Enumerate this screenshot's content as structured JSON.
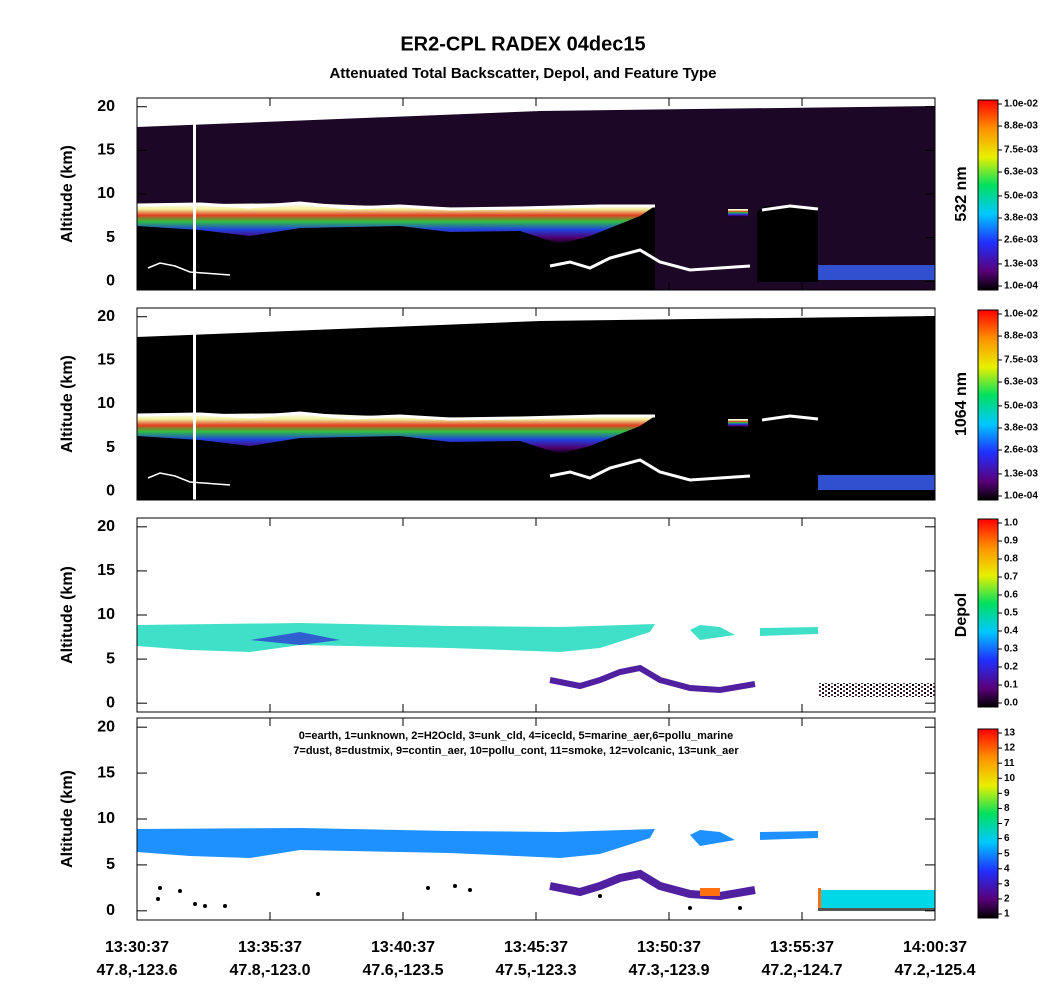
{
  "title": "ER2-CPL RADEX 04dec15",
  "subtitle": "Attenuated Total Backscatter, Depol, and Feature Type",
  "x_labels": [
    {
      "time": "13:30:37",
      "position": "47.8,-123.6"
    },
    {
      "time": "13:35:37",
      "position": "47.8,-123.0"
    },
    {
      "time": "13:40:37",
      "position": "47.6,-123.5"
    },
    {
      "time": "13:45:37",
      "position": "47.5,-123.3"
    },
    {
      "time": "13:50:37",
      "position": "47.3,-123.9"
    },
    {
      "time": "13:55:37",
      "position": "47.2,-124.7"
    },
    {
      "time": "14:00:37",
      "position": "47.2,-125.4"
    }
  ],
  "panels": [
    {
      "ylabel": "Altitude (km)",
      "ylim": [
        -1,
        21
      ],
      "yticks": [
        0,
        5,
        10,
        15,
        20
      ],
      "colorbar_label": "532 nm",
      "colorbar_lim": [
        0.0001,
        0.01
      ],
      "colorbar_ticks": [
        {
          "value": 0.01,
          "label": "1.0e-02"
        },
        {
          "value": 0.0088,
          "label": "8.8e-03"
        },
        {
          "value": 0.0075,
          "label": "7.5e-03"
        },
        {
          "value": 0.0063,
          "label": "6.3e-03"
        },
        {
          "value": 0.005,
          "label": "5.0e-03"
        },
        {
          "value": 0.0038,
          "label": "3.8e-03"
        },
        {
          "value": 0.0026,
          "label": "2.6e-03"
        },
        {
          "value": 0.0013,
          "label": "1.3e-03"
        },
        {
          "value": 0.0001,
          "label": "1.0e-04"
        }
      ]
    },
    {
      "ylabel": "Altitude (km)",
      "ylim": [
        -1,
        21
      ],
      "yticks": [
        0,
        5,
        10,
        15,
        20
      ],
      "colorbar_label": "1064 nm",
      "colorbar_lim": [
        0.0001,
        0.01
      ],
      "colorbar_ticks": [
        {
          "value": 0.01,
          "label": "1.0e-02"
        },
        {
          "value": 0.0088,
          "label": "8.8e-03"
        },
        {
          "value": 0.0075,
          "label": "7.5e-03"
        },
        {
          "value": 0.0063,
          "label": "6.3e-03"
        },
        {
          "value": 0.005,
          "label": "5.0e-03"
        },
        {
          "value": 0.0038,
          "label": "3.8e-03"
        },
        {
          "value": 0.0026,
          "label": "2.6e-03"
        },
        {
          "value": 0.0013,
          "label": "1.3e-03"
        },
        {
          "value": 0.0001,
          "label": "1.0e-04"
        }
      ]
    },
    {
      "ylabel": "Altitude (km)",
      "ylim": [
        -1,
        21
      ],
      "yticks": [
        0,
        5,
        10,
        15,
        20
      ],
      "colorbar_label": "Depol",
      "colorbar_lim": [
        0,
        1
      ],
      "colorbar_ticks": [
        {
          "value": 1,
          "label": "1.0"
        },
        {
          "value": 0.9,
          "label": "0.9"
        },
        {
          "value": 0.8,
          "label": "0.8"
        },
        {
          "value": 0.7,
          "label": "0.7"
        },
        {
          "value": 0.6,
          "label": "0.6"
        },
        {
          "value": 0.5,
          "label": "0.5"
        },
        {
          "value": 0.4,
          "label": "0.4"
        },
        {
          "value": 0.3,
          "label": "0.3"
        },
        {
          "value": 0.2,
          "label": "0.2"
        },
        {
          "value": 0.1,
          "label": "0.1"
        },
        {
          "value": 0,
          "label": "0.0"
        }
      ]
    },
    {
      "ylabel": "Altitude (km)",
      "ylim": [
        -1,
        21
      ],
      "yticks": [
        0,
        5,
        10,
        15,
        20
      ],
      "colorbar_lim": [
        1,
        13
      ],
      "colorbar_ticks": [
        13,
        12,
        11,
        10,
        9,
        8,
        7,
        6,
        5,
        4,
        3,
        2,
        1
      ],
      "legend_lines": [
        "0=earth, 1=unknown, 2=H2Ocld, 3=unk_cld, 4=icecld, 5=marine_aer,6=pollu_marine",
        "7=dust, 8=dustmix, 9=contin_aer, 10=pollu_cont, 11=smoke, 12=volcanic, 13=unk_aer"
      ]
    }
  ]
}
